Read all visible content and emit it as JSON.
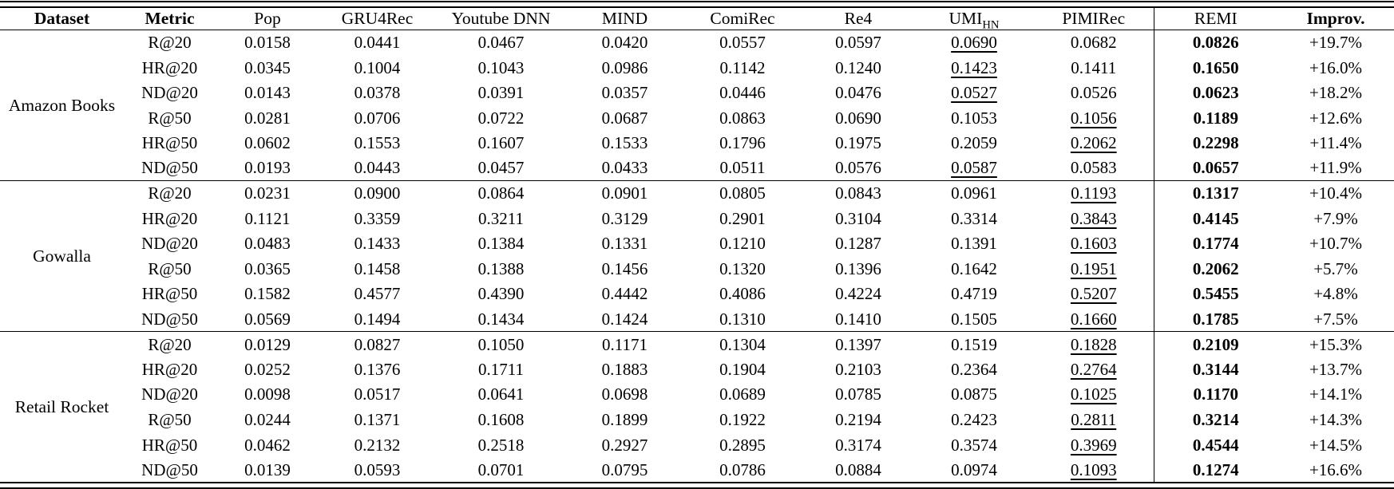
{
  "colors": {
    "text": "#000000",
    "background": "#ffffff",
    "rule": "#000000"
  },
  "formatting_note": {
    "best": "bold (REMI column)",
    "second_best": "underline"
  },
  "header": {
    "dataset_label": "Dataset",
    "metric_label": "Metric",
    "method_labels": [
      "Pop",
      "GRU4Rec",
      "Youtube DNN",
      "MIND",
      "ComiRec",
      "Re4",
      "UMI",
      "PIMIRec"
    ],
    "umi_subscript": "HN",
    "umi_index": 6,
    "remi_label": "REMI",
    "improv_label": "Improv."
  },
  "groups": [
    {
      "dataset": "Amazon Books",
      "rows": [
        {
          "metric": "R@20",
          "methods": [
            "0.0158",
            "0.0441",
            "0.0467",
            "0.0420",
            "0.0557",
            "0.0597",
            "0.0690",
            "0.0682"
          ],
          "second_best_index": 6,
          "remi": "0.0826",
          "improv": "+19.7%"
        },
        {
          "metric": "HR@20",
          "methods": [
            "0.0345",
            "0.1004",
            "0.1043",
            "0.0986",
            "0.1142",
            "0.1240",
            "0.1423",
            "0.1411"
          ],
          "second_best_index": 6,
          "remi": "0.1650",
          "improv": "+16.0%"
        },
        {
          "metric": "ND@20",
          "methods": [
            "0.0143",
            "0.0378",
            "0.0391",
            "0.0357",
            "0.0446",
            "0.0476",
            "0.0527",
            "0.0526"
          ],
          "second_best_index": 6,
          "remi": "0.0623",
          "improv": "+18.2%"
        },
        {
          "metric": "R@50",
          "methods": [
            "0.0281",
            "0.0706",
            "0.0722",
            "0.0687",
            "0.0863",
            "0.0690",
            "0.1053",
            "0.1056"
          ],
          "second_best_index": 7,
          "remi": "0.1189",
          "improv": "+12.6%"
        },
        {
          "metric": "HR@50",
          "methods": [
            "0.0602",
            "0.1553",
            "0.1607",
            "0.1533",
            "0.1796",
            "0.1975",
            "0.2059",
            "0.2062"
          ],
          "second_best_index": 7,
          "remi": "0.2298",
          "improv": "+11.4%"
        },
        {
          "metric": "ND@50",
          "methods": [
            "0.0193",
            "0.0443",
            "0.0457",
            "0.0433",
            "0.0511",
            "0.0576",
            "0.0587",
            "0.0583"
          ],
          "second_best_index": 6,
          "remi": "0.0657",
          "improv": "+11.9%"
        }
      ]
    },
    {
      "dataset": "Gowalla",
      "rows": [
        {
          "metric": "R@20",
          "methods": [
            "0.0231",
            "0.0900",
            "0.0864",
            "0.0901",
            "0.0805",
            "0.0843",
            "0.0961",
            "0.1193"
          ],
          "second_best_index": 7,
          "remi": "0.1317",
          "improv": "+10.4%"
        },
        {
          "metric": "HR@20",
          "methods": [
            "0.1121",
            "0.3359",
            "0.3211",
            "0.3129",
            "0.2901",
            "0.3104",
            "0.3314",
            "0.3843"
          ],
          "second_best_index": 7,
          "remi": "0.4145",
          "improv": "+7.9%"
        },
        {
          "metric": "ND@20",
          "methods": [
            "0.0483",
            "0.1433",
            "0.1384",
            "0.1331",
            "0.1210",
            "0.1287",
            "0.1391",
            "0.1603"
          ],
          "second_best_index": 7,
          "remi": "0.1774",
          "improv": "+10.7%"
        },
        {
          "metric": "R@50",
          "methods": [
            "0.0365",
            "0.1458",
            "0.1388",
            "0.1456",
            "0.1320",
            "0.1396",
            "0.1642",
            "0.1951"
          ],
          "second_best_index": 7,
          "remi": "0.2062",
          "improv": "+5.7%"
        },
        {
          "metric": "HR@50",
          "methods": [
            "0.1582",
            "0.4577",
            "0.4390",
            "0.4442",
            "0.4086",
            "0.4224",
            "0.4719",
            "0.5207"
          ],
          "second_best_index": 7,
          "remi": "0.5455",
          "improv": "+4.8%"
        },
        {
          "metric": "ND@50",
          "methods": [
            "0.0569",
            "0.1494",
            "0.1434",
            "0.1424",
            "0.1310",
            "0.1410",
            "0.1505",
            "0.1660"
          ],
          "second_best_index": 7,
          "remi": "0.1785",
          "improv": "+7.5%"
        }
      ]
    },
    {
      "dataset": "Retail Rocket",
      "rows": [
        {
          "metric": "R@20",
          "methods": [
            "0.0129",
            "0.0827",
            "0.1050",
            "0.1171",
            "0.1304",
            "0.1397",
            "0.1519",
            "0.1828"
          ],
          "second_best_index": 7,
          "remi": "0.2109",
          "improv": "+15.3%"
        },
        {
          "metric": "HR@20",
          "methods": [
            "0.0252",
            "0.1376",
            "0.1711",
            "0.1883",
            "0.1904",
            "0.2103",
            "0.2364",
            "0.2764"
          ],
          "second_best_index": 7,
          "remi": "0.3144",
          "improv": "+13.7%"
        },
        {
          "metric": "ND@20",
          "methods": [
            "0.0098",
            "0.0517",
            "0.0641",
            "0.0698",
            "0.0689",
            "0.0785",
            "0.0875",
            "0.1025"
          ],
          "second_best_index": 7,
          "remi": "0.1170",
          "improv": "+14.1%"
        },
        {
          "metric": "R@50",
          "methods": [
            "0.0244",
            "0.1371",
            "0.1608",
            "0.1899",
            "0.1922",
            "0.2194",
            "0.2423",
            "0.2811"
          ],
          "second_best_index": 7,
          "remi": "0.3214",
          "improv": "+14.3%"
        },
        {
          "metric": "HR@50",
          "methods": [
            "0.0462",
            "0.2132",
            "0.2518",
            "0.2927",
            "0.2895",
            "0.3174",
            "0.3574",
            "0.3969"
          ],
          "second_best_index": 7,
          "remi": "0.4544",
          "improv": "+14.5%"
        },
        {
          "metric": "ND@50",
          "methods": [
            "0.0139",
            "0.0593",
            "0.0701",
            "0.0795",
            "0.0786",
            "0.0884",
            "0.0974",
            "0.1093"
          ],
          "second_best_index": 7,
          "remi": "0.1274",
          "improv": "+16.6%"
        }
      ]
    }
  ]
}
